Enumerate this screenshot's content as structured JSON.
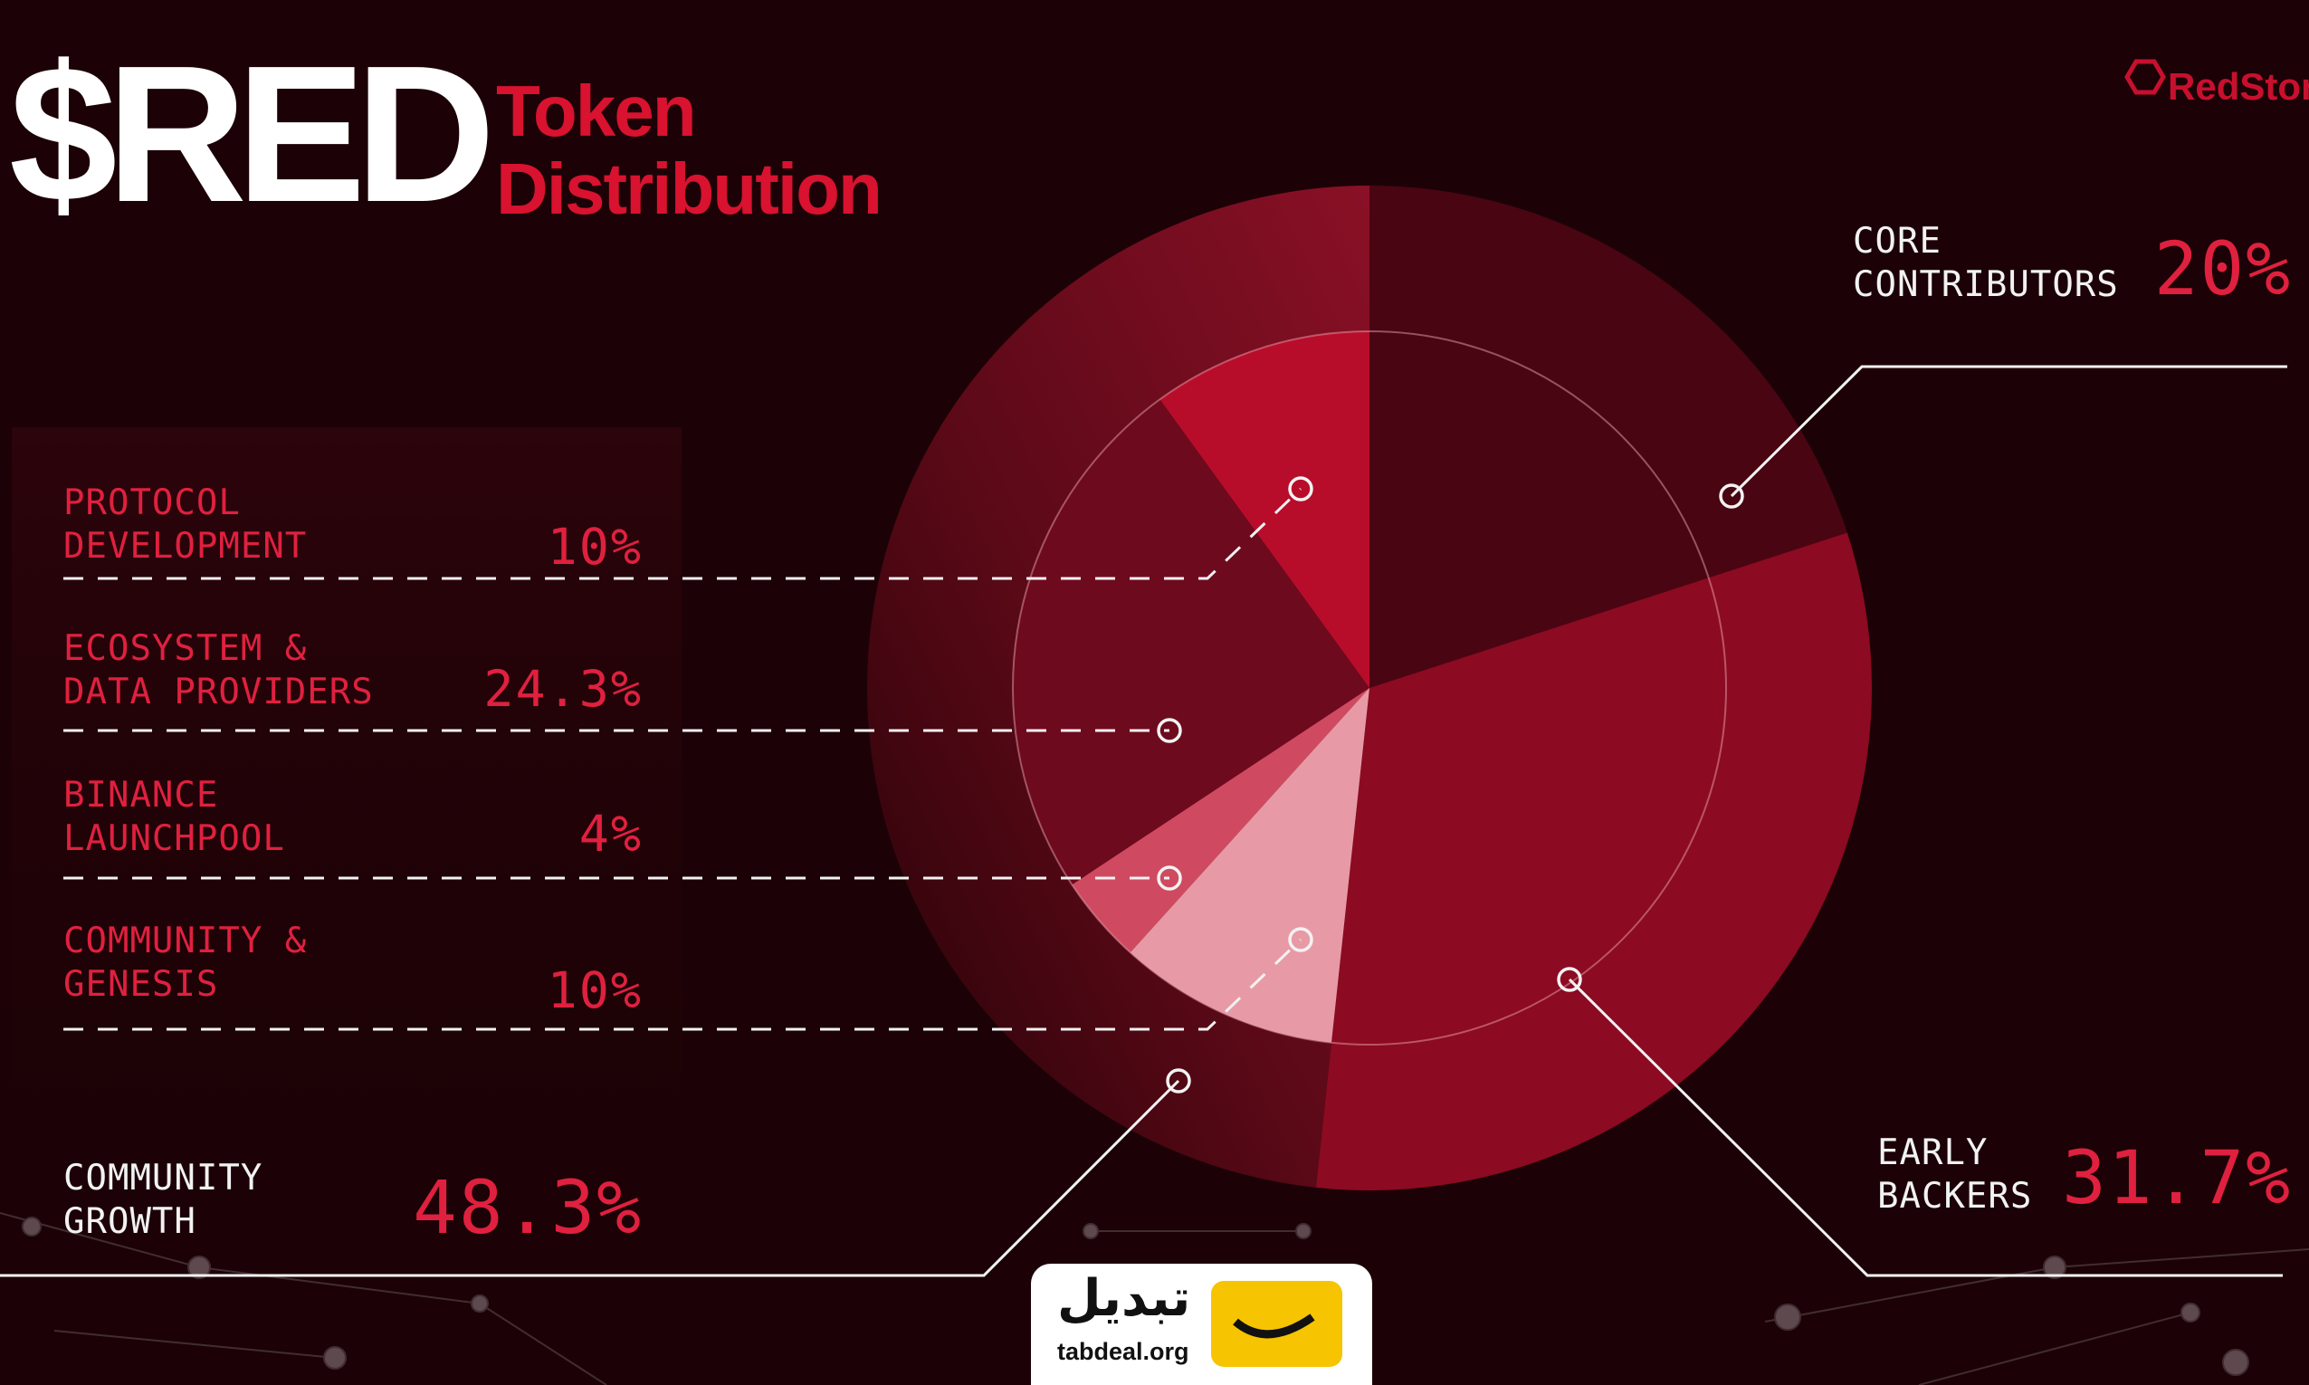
{
  "chart_data": {
    "type": "pie",
    "title": "$RED",
    "subtitle": "Token\nDistribution",
    "categories": [
      "CORE\nCONTRIBUTORS",
      "EARLY\nBACKERS",
      "COMMUNITY\nGROWTH"
    ],
    "values": [
      20,
      31.7,
      48.3
    ],
    "value_labels": [
      "20%",
      "31.7%",
      "48.3%"
    ],
    "colors": [
      "#4a0512",
      "#8c0a22",
      "#5a0917"
    ],
    "sub_categories": [
      "PROTOCOL\nDEVELOPMENT",
      "ECOSYSTEM &\nDATA PROVIDERS",
      "BINANCE\nLAUNCHPOOL",
      "COMMUNITY &\nGENESIS"
    ],
    "sub_values": [
      10,
      24.3,
      4,
      10
    ],
    "sub_value_labels": [
      "10%",
      "24.3%",
      "4%",
      "10%"
    ],
    "sub_colors": [
      "#b80d2a",
      "#6e0a1e",
      "#cf4a60",
      "#e79aa6"
    ]
  },
  "logo": "RedSton",
  "watermark": {
    "persian": "تبدیل",
    "site": "tabdeal.org"
  }
}
